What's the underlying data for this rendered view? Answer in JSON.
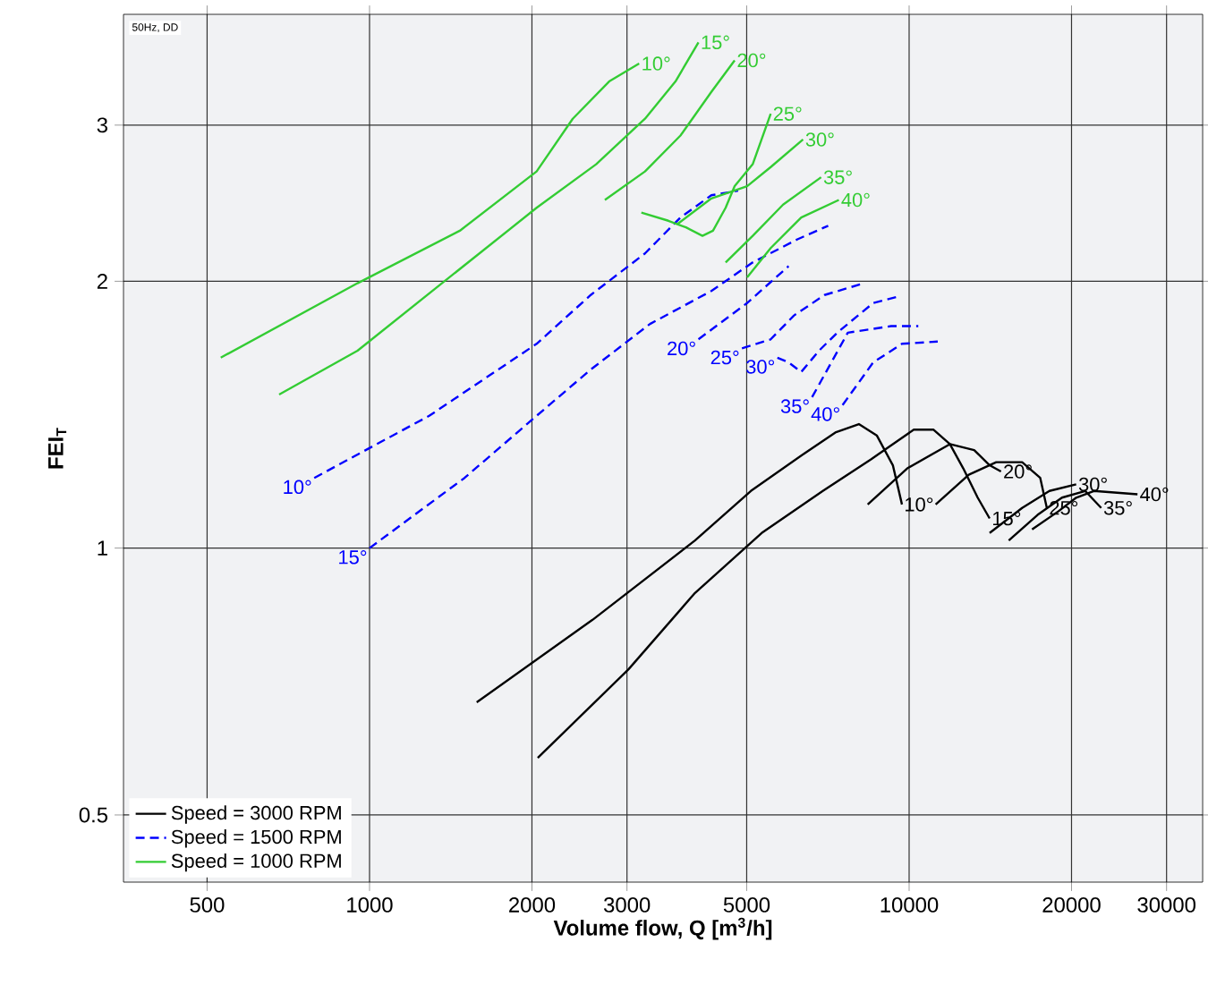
{
  "chart_data": {
    "type": "line",
    "xlabel": "Volume flow, Q [m$^{3}$/h]",
    "ylabel": "FEI$_{T}$",
    "log": "xy",
    "grid": true,
    "legend": "bottom left",
    "xlim": [
      350,
      35000
    ],
    "ylim": [
      0.42,
      4.0
    ],
    "xticks": [
      500,
      1000,
      2000,
      3000,
      5000,
      10000,
      20000,
      30000
    ],
    "yticks": [
      0.5,
      1,
      2,
      3
    ],
    "series": [
      {
        "name": "Speed = 3000 RPM",
        "color": "#000000",
        "x": [
          1580,
          2590,
          4010,
          5090,
          6410,
          7300,
          8070,
          8710,
          9330,
          9700
        ],
        "values": [
          0.67,
          0.83,
          1.02,
          1.16,
          1.28,
          1.35,
          1.38,
          1.34,
          1.24,
          1.12
        ]
      },
      {
        "color": "#000000",
        "x": [
          2050,
          3020,
          4010,
          5330,
          6920,
          8510,
          10200,
          11100,
          11900,
          12600,
          13400,
          14100
        ],
        "values": [
          0.58,
          0.73,
          0.89,
          1.04,
          1.16,
          1.26,
          1.36,
          1.36,
          1.31,
          1.23,
          1.14,
          1.08
        ]
      },
      {
        "color": "#000000",
        "x": [
          8380,
          9920,
          11900,
          13200,
          14100,
          14800
        ],
        "values": [
          1.12,
          1.23,
          1.31,
          1.29,
          1.24,
          1.22
        ]
      },
      {
        "color": "#000000",
        "x": [
          11200,
          12900,
          14500,
          16200,
          17500,
          18000
        ],
        "values": [
          1.12,
          1.21,
          1.25,
          1.25,
          1.2,
          1.11
        ]
      },
      {
        "color": "#000000",
        "x": [
          14100,
          16200,
          18200,
          20400
        ],
        "values": [
          1.04,
          1.11,
          1.16,
          1.18
        ]
      },
      {
        "color": "#000000",
        "x": [
          15300,
          17300,
          19200,
          21200,
          22700
        ],
        "values": [
          1.02,
          1.09,
          1.14,
          1.16,
          1.11
        ]
      },
      {
        "color": "#000000",
        "x": [
          16900,
          18900,
          20400,
          22000,
          26500
        ],
        "values": [
          1.05,
          1.1,
          1.14,
          1.16,
          1.15
        ]
      },
      {
        "name": "Speed = 1500 RPM",
        "color": "#0000ff",
        "line_style": "dashed",
        "x": [
          790,
          1290,
          2040,
          2570,
          3240,
          3770,
          4300,
          4820
        ],
        "values": [
          1.2,
          1.41,
          1.7,
          1.93,
          2.15,
          2.36,
          2.5,
          2.53
        ]
      },
      {
        "color": "#0000ff",
        "line_style": "dashed",
        "x": [
          1000,
          1500,
          2040,
          2570,
          3310,
          4300,
          5130,
          6210,
          7080
        ],
        "values": [
          1.0,
          1.2,
          1.41,
          1.59,
          1.79,
          1.95,
          2.1,
          2.23,
          2.31
        ]
      },
      {
        "color": "#0000ff",
        "line_style": "dashed",
        "x": [
          4070,
          5010,
          5980
        ],
        "values": [
          1.72,
          1.89,
          2.08
        ]
      },
      {
        "color": "#0000ff",
        "line_style": "dashed",
        "x": [
          4900,
          5540,
          6120,
          6970,
          8250
        ],
        "values": [
          1.68,
          1.72,
          1.83,
          1.93,
          1.99
        ]
      },
      {
        "color": "#0000ff",
        "line_style": "dashed",
        "x": [
          5700,
          5980,
          6310,
          6810,
          7360,
          8580,
          9480
        ],
        "values": [
          1.64,
          1.62,
          1.58,
          1.67,
          1.75,
          1.89,
          1.92
        ]
      },
      {
        "color": "#0000ff",
        "line_style": "dashed",
        "x": [
          6610,
          7700,
          9260,
          10400
        ],
        "values": [
          1.48,
          1.75,
          1.78,
          1.78
        ]
      },
      {
        "color": "#0000ff",
        "line_style": "dashed",
        "x": [
          7530,
          8580,
          9700,
          11300
        ],
        "values": [
          1.45,
          1.62,
          1.7,
          1.71
        ]
      },
      {
        "name": "Speed = 1000 RPM",
        "color": "#33cc33",
        "x": [
          530,
          950,
          1470,
          2040,
          2380,
          2780,
          3160
        ],
        "values": [
          1.64,
          1.99,
          2.28,
          2.66,
          3.05,
          3.36,
          3.52
        ]
      },
      {
        "color": "#33cc33",
        "x": [
          680,
          950,
          1420,
          2040,
          2630,
          3240,
          3690,
          4070
        ],
        "values": [
          1.49,
          1.67,
          2.03,
          2.42,
          2.71,
          3.05,
          3.36,
          3.72
        ]
      },
      {
        "color": "#33cc33",
        "x": [
          2730,
          3240,
          3770,
          4300,
          4750
        ],
        "values": [
          2.47,
          2.66,
          2.92,
          3.27,
          3.55
        ]
      },
      {
        "color": "#33cc33",
        "x": [
          3190,
          3580,
          3860,
          4140,
          4330,
          4570,
          4750,
          5130,
          5540
        ],
        "values": [
          2.39,
          2.34,
          2.3,
          2.25,
          2.28,
          2.42,
          2.56,
          2.71,
          3.09
        ]
      },
      {
        "color": "#33cc33",
        "x": [
          3720,
          4300,
          5010,
          5540,
          6360
        ],
        "values": [
          2.32,
          2.48,
          2.56,
          2.69,
          2.89
        ]
      },
      {
        "color": "#33cc33",
        "x": [
          4570,
          5130,
          5840,
          6870
        ],
        "values": [
          2.1,
          2.25,
          2.44,
          2.62
        ]
      },
      {
        "color": "#33cc33",
        "x": [
          5010,
          5540,
          6310,
          7410
        ],
        "values": [
          2.02,
          2.18,
          2.36,
          2.47
        ]
      }
    ],
    "annotations": [
      "50Hz, DD",
      {
        "text": "10°",
        "x": 9700,
        "y": 1.12
      },
      {
        "text": "15°",
        "x": 14100,
        "y": 1.08
      },
      {
        "text": "20°",
        "x": 14800,
        "y": 1.22
      },
      {
        "text": "25°",
        "x": 18000,
        "y": 1.11
      },
      {
        "text": "30°",
        "x": 20400,
        "y": 1.18
      },
      {
        "text": "35°",
        "x": 22700,
        "y": 1.11
      },
      {
        "text": "40°",
        "x": 26500,
        "y": 1.15
      },
      {
        "text": "10°",
        "x": 790,
        "y": 1.2
      },
      {
        "text": "15°",
        "x": 1000,
        "y": 1.0
      },
      {
        "text": "20°",
        "x": 4070,
        "y": 1.72
      },
      {
        "text": "25°",
        "x": 4900,
        "y": 1.68
      },
      {
        "text": "30°",
        "x": 5700,
        "y": 1.64
      },
      {
        "text": "35°",
        "x": 6610,
        "y": 1.48
      },
      {
        "text": "40°",
        "x": 7530,
        "y": 1.45
      },
      {
        "text": "10°",
        "x": 3160,
        "y": 3.52
      },
      {
        "text": "15°",
        "x": 4070,
        "y": 3.72
      },
      {
        "text": "20°",
        "x": 4750,
        "y": 3.55
      },
      {
        "text": "25°",
        "x": 5540,
        "y": 3.09
      },
      {
        "text": "30°",
        "x": 6360,
        "y": 2.89
      },
      {
        "text": "35°",
        "x": 6870,
        "y": 2.62
      },
      {
        "text": "40°",
        "x": 7410,
        "y": 2.47
      }
    ]
  }
}
